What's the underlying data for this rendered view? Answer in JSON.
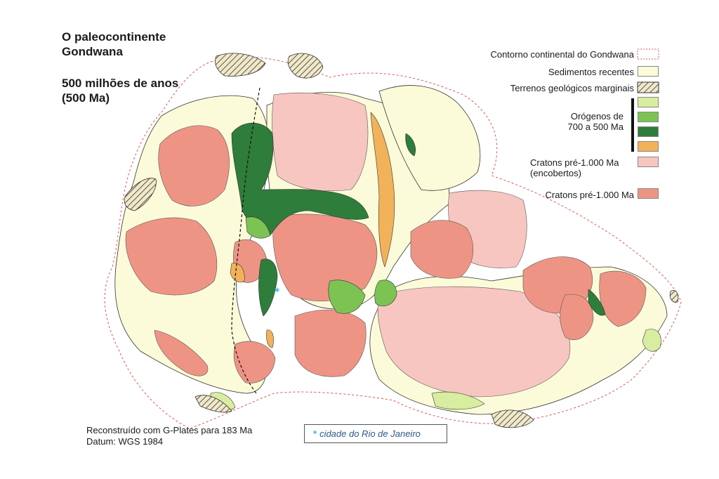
{
  "title": {
    "line1": "O paleocontinente",
    "line2": "Gondwana",
    "age_line1": "500 milhões de anos",
    "age_line2": "(500 Ma)"
  },
  "legend": {
    "contorno": "Contorno continental do Gondwana",
    "sedimentos": "Sedimentos recentes",
    "terrenos": "Terrenos geológicos marginais",
    "orogenos_line1": "Orógenos de",
    "orogenos_line2": "700 a 500 Ma",
    "cratons_enc_line1": "Cratons pré-1.000 Ma",
    "cratons_enc_line2": "(encobertos)",
    "cratons": "Cratons pré-1.000 Ma"
  },
  "colors": {
    "sedimentos": "#fcfbd9",
    "orogeno_light": "#d8eda0",
    "orogeno_mid": "#7cc354",
    "orogeno_dark": "#2e7d3a",
    "orogeno_orange": "#f2b25a",
    "craton_encoberto": "#f7c6c0",
    "craton": "#ee9485",
    "contorno": "#e05555",
    "terreno_hatch": "#f0e8c8"
  },
  "notes": {
    "line1": "Reconstruído com G-Plates para 183 Ma",
    "line2": "Datum: WGS 1984"
  },
  "rio": {
    "symbol": "*",
    "label": "cidade do Rio de Janeiro"
  }
}
